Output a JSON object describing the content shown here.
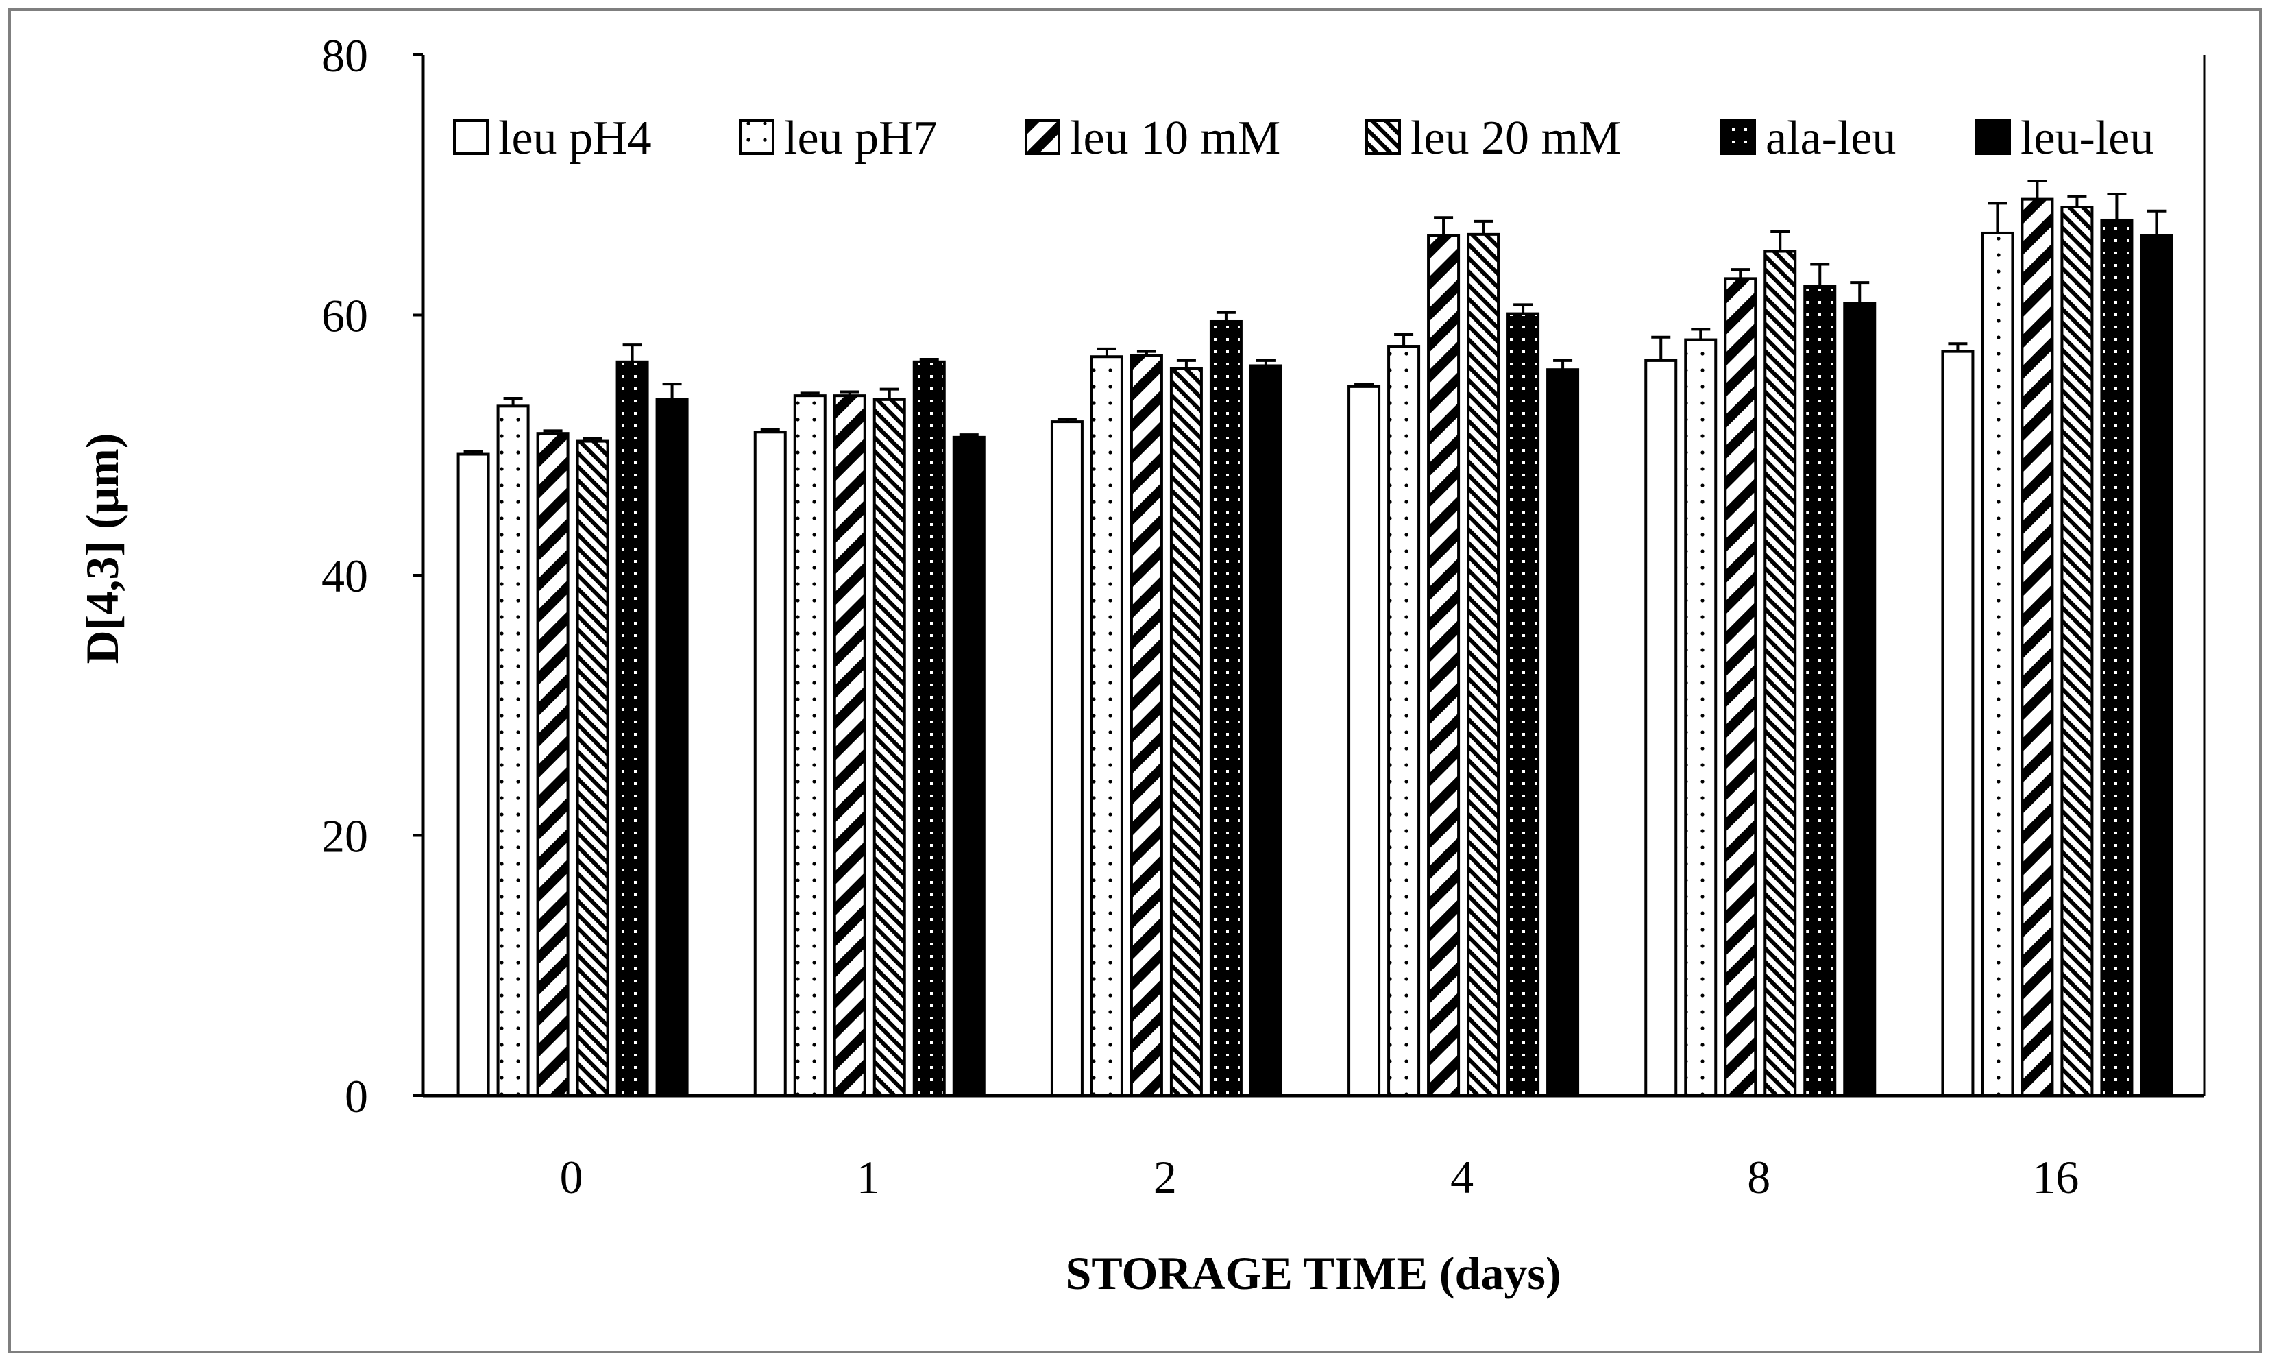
{
  "chart_data": {
    "type": "bar",
    "xlabel": "STORAGE TIME (days)",
    "ylabel": "D[4,3]  (μm)",
    "ylim": [
      0,
      80
    ],
    "yticks": [
      0,
      20,
      40,
      60,
      80
    ],
    "grid": false,
    "legend_position": "top",
    "categories": [
      "0",
      "1",
      "2",
      "4",
      "8",
      "16"
    ],
    "series": [
      {
        "name": "leu pH4",
        "pattern": "open",
        "values": [
          49.3,
          51.0,
          51.8,
          54.5,
          56.5,
          57.2
        ],
        "errors": [
          0.2,
          0.2,
          0.2,
          0.2,
          1.8,
          0.6
        ]
      },
      {
        "name": "leu pH7",
        "pattern": "dotted",
        "values": [
          53.0,
          53.8,
          56.8,
          57.6,
          58.1,
          66.3
        ],
        "errors": [
          0.6,
          0.2,
          0.6,
          0.9,
          0.8,
          2.3
        ]
      },
      {
        "name": "leu 10 mM",
        "pattern": "wide-diagonal",
        "values": [
          50.9,
          53.8,
          56.9,
          66.1,
          62.8,
          68.9
        ],
        "errors": [
          0.2,
          0.3,
          0.3,
          1.4,
          0.7,
          1.4
        ]
      },
      {
        "name": "leu 20 mM",
        "pattern": "fine-diagonal",
        "values": [
          50.3,
          53.5,
          55.9,
          66.2,
          64.9,
          68.3
        ],
        "errors": [
          0.2,
          0.8,
          0.6,
          1.0,
          1.5,
          0.8
        ]
      },
      {
        "name": "ala-leu",
        "pattern": "dark-dotted",
        "values": [
          56.4,
          56.4,
          59.5,
          60.1,
          62.2,
          67.3
        ],
        "errors": [
          1.3,
          0.2,
          0.7,
          0.7,
          1.7,
          2.0
        ]
      },
      {
        "name": "leu-leu",
        "pattern": "solid",
        "values": [
          53.5,
          50.6,
          56.1,
          55.8,
          60.9,
          66.1
        ],
        "errors": [
          1.2,
          0.2,
          0.4,
          0.7,
          1.6,
          1.9
        ]
      }
    ]
  },
  "colors": {
    "bar_edge": "#000000",
    "dark_fill": "#000000",
    "light_fill": "#ffffff",
    "frame": "#7f7f7f"
  }
}
